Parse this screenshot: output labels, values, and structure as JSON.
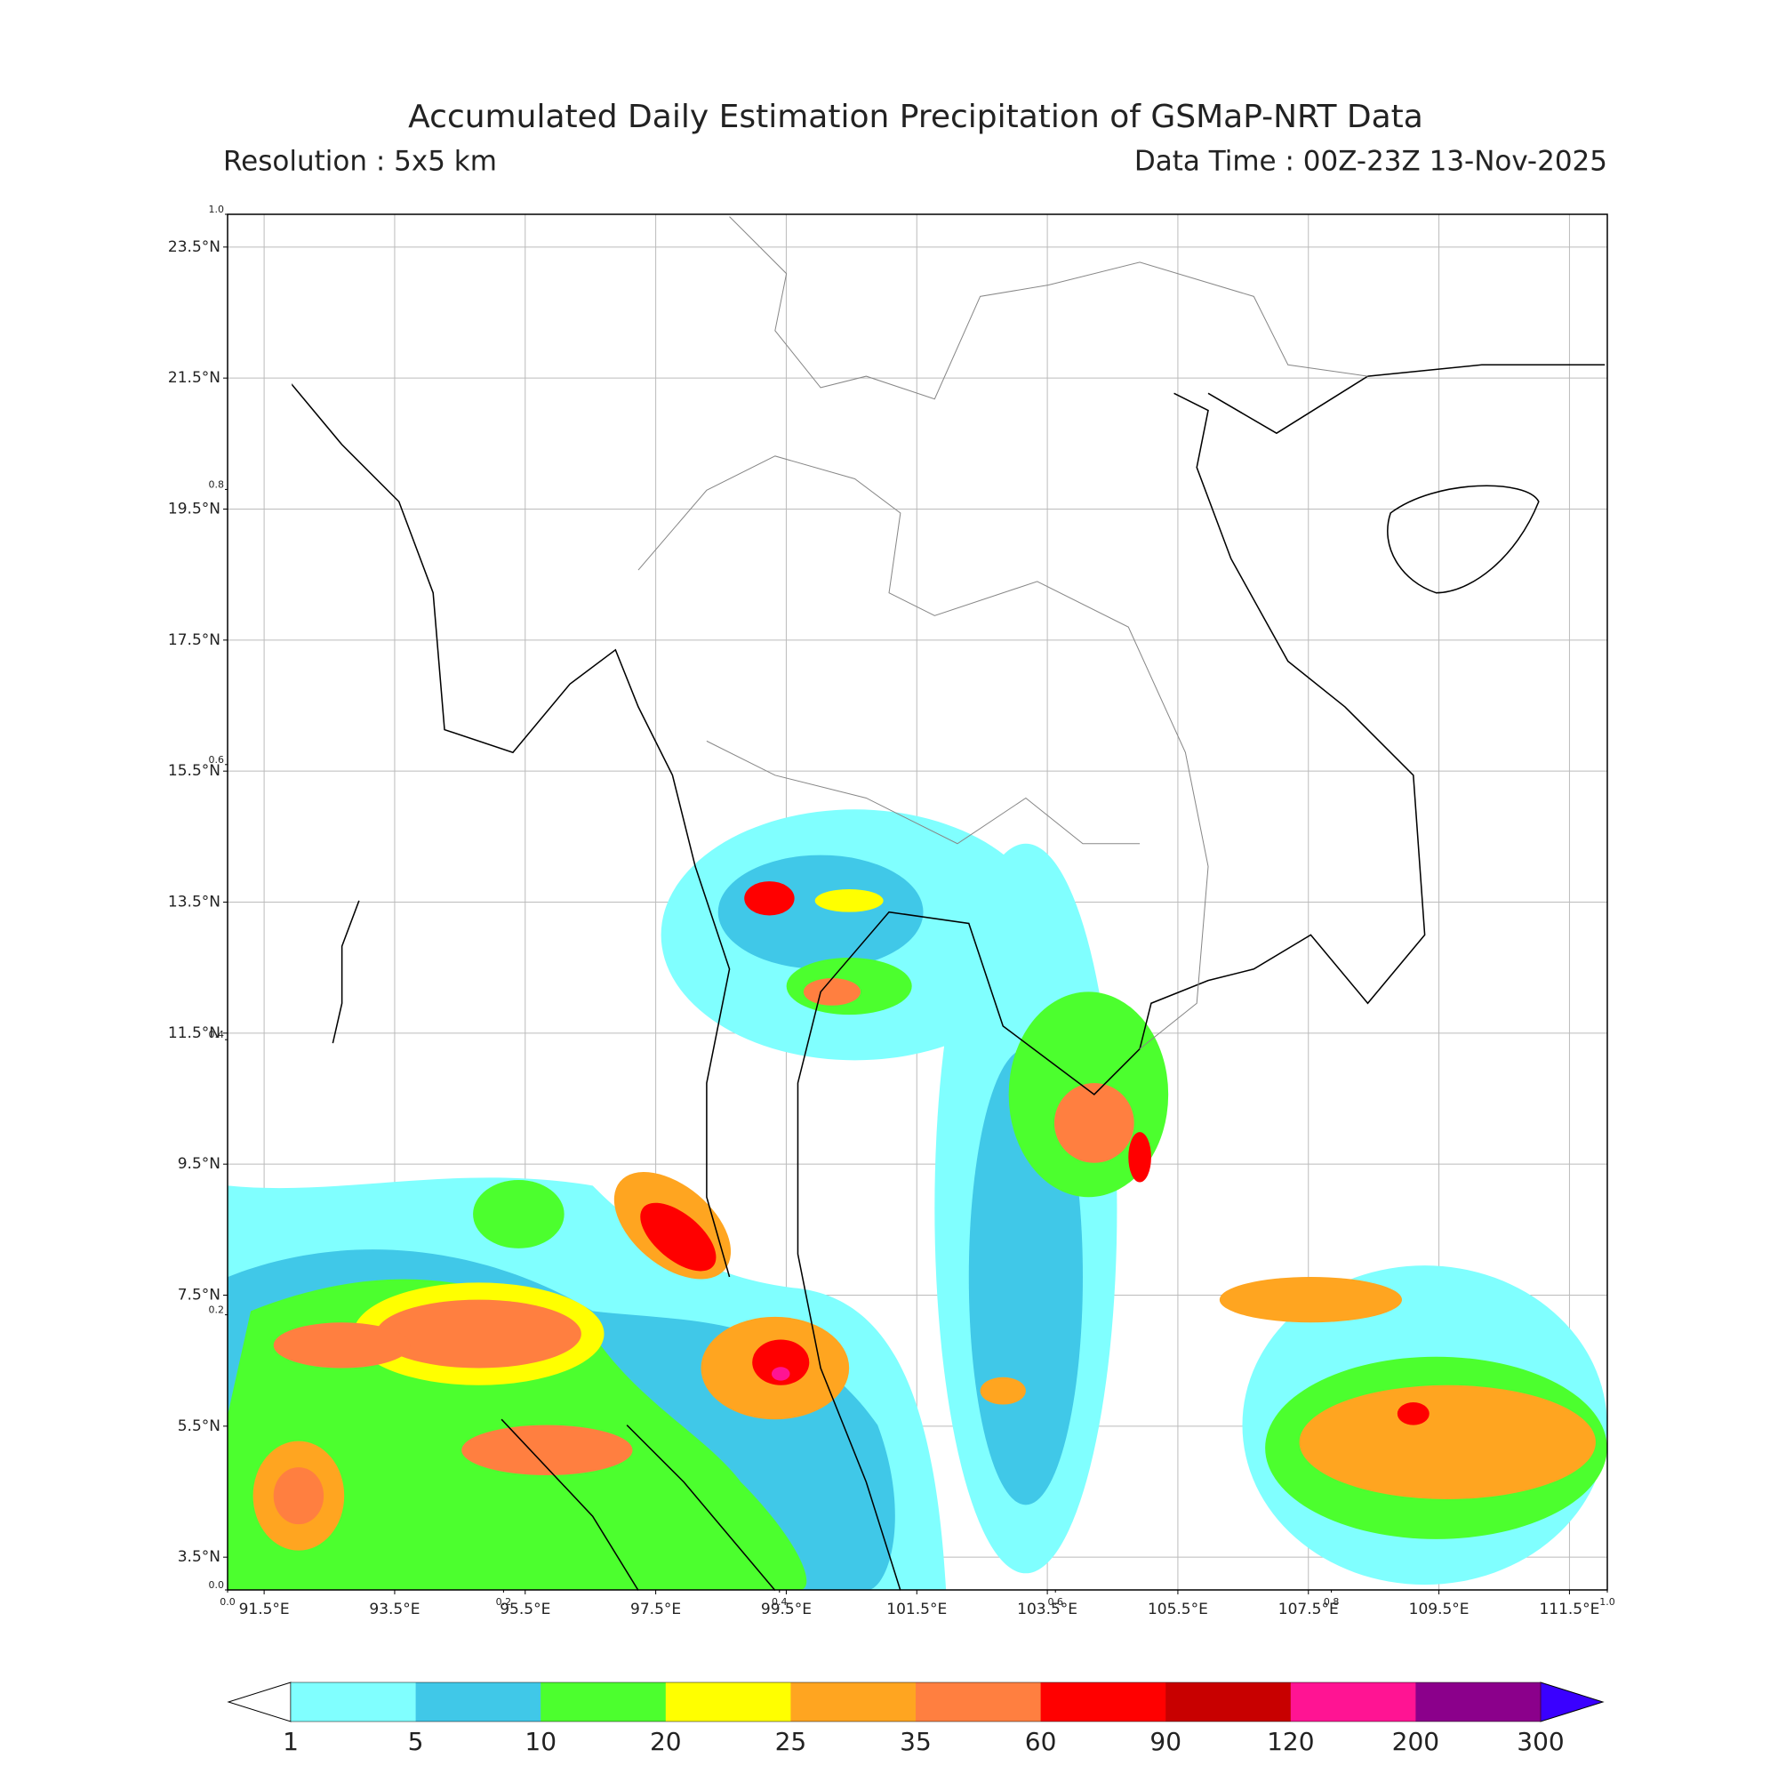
{
  "header": {
    "title": "Accumulated Daily Estimation Precipitation of GSMaP-NRT Data",
    "resolution": "Resolution : 5x5 km",
    "data_time": "Data Time : 00Z-23Z 13-Nov-2025"
  },
  "map": {
    "lonlim": [
      90.94,
      112.08
    ],
    "latlim": [
      3.0,
      24.0
    ],
    "lon_ticks": [
      {
        "value": 91.5,
        "label": "91.5°E"
      },
      {
        "value": 93.5,
        "label": "93.5°E"
      },
      {
        "value": 95.5,
        "label": "95.5°E"
      },
      {
        "value": 97.5,
        "label": "97.5°E"
      },
      {
        "value": 99.5,
        "label": "99.5°E"
      },
      {
        "value": 101.5,
        "label": "101.5°E"
      },
      {
        "value": 103.5,
        "label": "103.5°E"
      },
      {
        "value": 105.5,
        "label": "105.5°E"
      },
      {
        "value": 107.5,
        "label": "107.5°E"
      },
      {
        "value": 109.5,
        "label": "109.5°E"
      },
      {
        "value": 111.5,
        "label": "111.5°E"
      }
    ],
    "lat_ticks": [
      {
        "value": 23.5,
        "label": "23.5°N"
      },
      {
        "value": 21.5,
        "label": "21.5°N"
      },
      {
        "value": 19.5,
        "label": "19.5°N"
      },
      {
        "value": 17.5,
        "label": "17.5°N"
      },
      {
        "value": 15.5,
        "label": "15.5°N"
      },
      {
        "value": 13.5,
        "label": "13.5°N"
      },
      {
        "value": 11.5,
        "label": "11.5°N"
      },
      {
        "value": 9.5,
        "label": "9.5°N"
      },
      {
        "value": 7.5,
        "label": "7.5°N"
      },
      {
        "value": 5.5,
        "label": "5.5°N"
      },
      {
        "value": 3.5,
        "label": "3.5°N"
      }
    ],
    "frame_yticks": [
      {
        "value": 1,
        "label": "1.0"
      },
      {
        "value": 0.8,
        "label": "0.8"
      },
      {
        "value": 0.6,
        "label": "0.6"
      },
      {
        "value": 0.4,
        "label": "0.4"
      },
      {
        "value": 0.2,
        "label": "0.2"
      },
      {
        "value": 0,
        "label": "0.0"
      }
    ],
    "frame_xticks": [
      {
        "value": 0,
        "label": "0.0"
      },
      {
        "value": 0.2,
        "label": "0.2"
      },
      {
        "value": 0.4,
        "label": "0.4"
      },
      {
        "value": 0.6,
        "label": "0.6"
      },
      {
        "value": 0.8,
        "label": "0.8"
      },
      {
        "value": 1,
        "label": "1.0"
      }
    ]
  },
  "colorbar": {
    "levels": [
      1,
      5,
      10,
      20,
      25,
      35,
      60,
      90,
      120,
      200,
      300
    ],
    "colors": [
      "#80ffff",
      "#40c8e8",
      "#4cff2e",
      "#ffff00",
      "#ffa520",
      "#ff7f40",
      "#ff0000",
      "#c80000",
      "#ff1493",
      "#8b008b"
    ],
    "under_color": "#ffffff",
    "over_color": "#3a00ff"
  }
}
